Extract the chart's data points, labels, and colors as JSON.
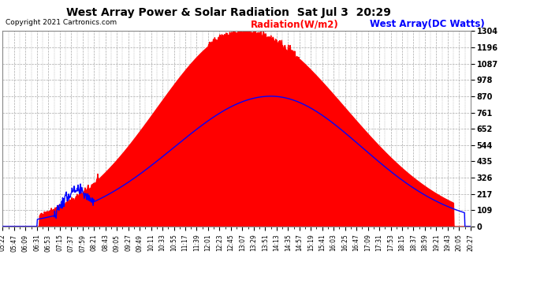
{
  "title": "West Array Power & Solar Radiation  Sat Jul 3  20:29",
  "copyright": "Copyright 2021 Cartronics.com",
  "legend_radiation": "Radiation(W/m2)",
  "legend_west": "West Array(DC Watts)",
  "ymax": 1304.5,
  "yticks": [
    0.0,
    108.7,
    217.4,
    326.1,
    434.8,
    543.5,
    652.2,
    760.9,
    869.6,
    978.4,
    1087.1,
    1195.8,
    1304.5
  ],
  "background_color": "#ffffff",
  "plot_bg_color": "#ffffff",
  "radiation_color": "#ff0000",
  "west_array_color": "#0000ff",
  "grid_color": "#aaaaaa",
  "west_peak": 869.6,
  "x_labels": [
    "05:22",
    "05:47",
    "06:09",
    "06:31",
    "06:53",
    "07:15",
    "07:37",
    "07:59",
    "08:21",
    "08:43",
    "09:05",
    "09:27",
    "09:49",
    "10:11",
    "10:33",
    "10:55",
    "11:17",
    "11:39",
    "12:01",
    "12:23",
    "12:45",
    "13:07",
    "13:29",
    "13:51",
    "14:13",
    "14:35",
    "14:57",
    "15:19",
    "15:41",
    "16:03",
    "16:25",
    "16:47",
    "17:09",
    "17:31",
    "17:53",
    "18:15",
    "18:37",
    "18:59",
    "19:21",
    "19:43",
    "20:05",
    "20:27"
  ]
}
